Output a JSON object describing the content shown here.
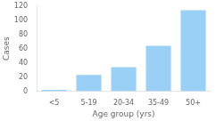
{
  "chart_data": {
    "type": "bar",
    "categories": [
      "<5",
      "5-19",
      "20-34",
      "35-49",
      "50+"
    ],
    "values": [
      2,
      23,
      34,
      64,
      114
    ],
    "xlabel": "Age group (yrs)",
    "ylabel": "Cases",
    "ylim": [
      0,
      120
    ],
    "yticks": [
      0,
      20,
      40,
      60,
      80,
      100,
      120
    ],
    "grid": false
  }
}
